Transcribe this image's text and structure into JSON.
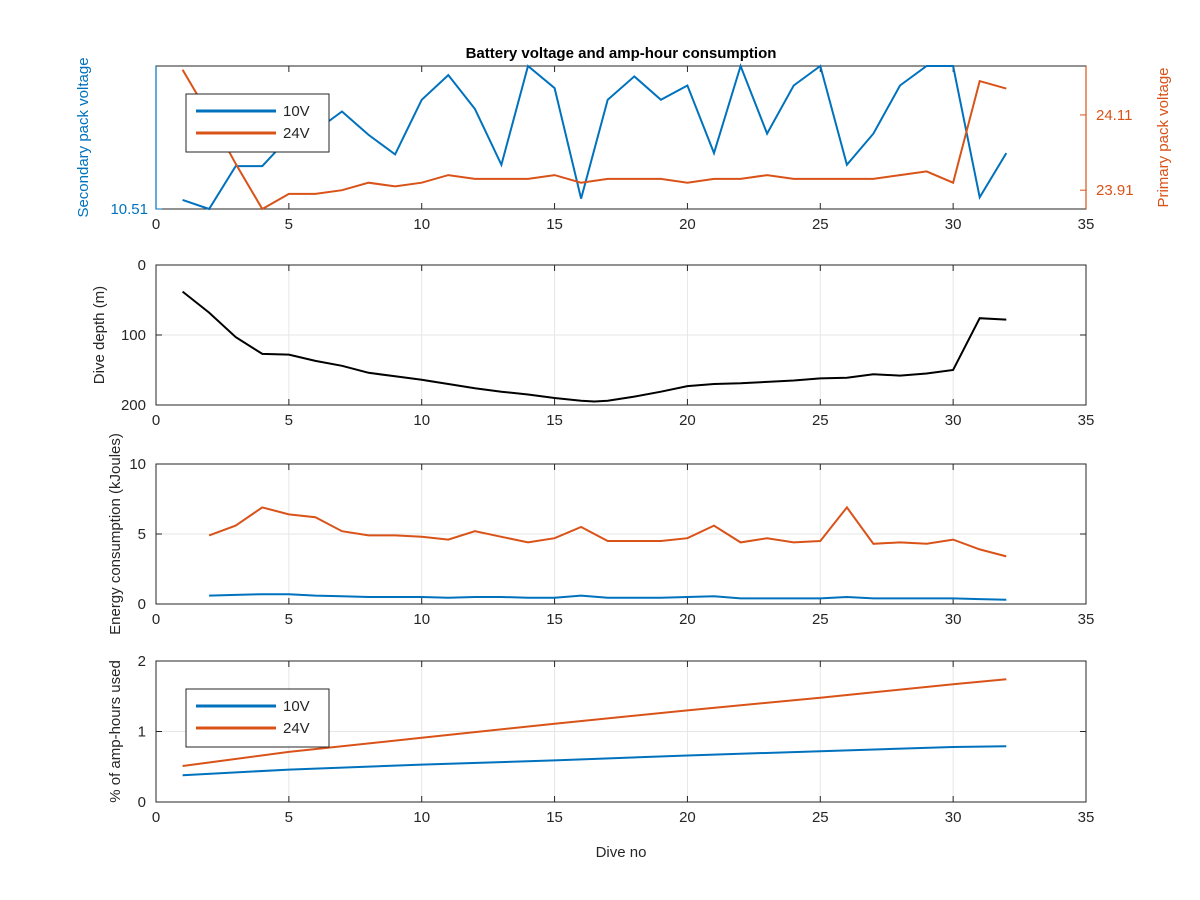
{
  "figure": {
    "title": "Battery voltage and amp-hour consumption",
    "colors": {
      "blue": "#0072BD",
      "orange": "#D95319",
      "black": "#000000",
      "grid": "#e6e6e6",
      "axis": "#262626"
    }
  },
  "chart_data": [
    {
      "id": "voltage",
      "type": "line",
      "title": "Battery voltage and amp-hour consumption",
      "xlabel": "",
      "xlim": [
        0,
        35
      ],
      "xticks": [
        0,
        5,
        10,
        15,
        20,
        25,
        30,
        35
      ],
      "grid": false,
      "legend": "top-left",
      "left_axis": {
        "label": "Secondary pack voltage",
        "ylim": [
          10.51,
          10.62
        ],
        "ticks": [
          10.51
        ],
        "tick_labels": [
          "10.51"
        ],
        "color": "#0072BD"
      },
      "right_axis": {
        "label": "Primary pack voltage",
        "ylim": [
          23.86,
          24.24
        ],
        "ticks": [
          23.91,
          24.11
        ],
        "tick_labels": [
          "23.91",
          "24.11"
        ],
        "color": "#D95319"
      },
      "series": [
        {
          "name": "10V",
          "axis": "left",
          "color": "#0072BD",
          "x": [
            1,
            2,
            3,
            4,
            5,
            6,
            7,
            8,
            9,
            10,
            11,
            12,
            13,
            14,
            15,
            16,
            17,
            18,
            19,
            20,
            21,
            22,
            23,
            24,
            25,
            26,
            27,
            28,
            29,
            30,
            31,
            32
          ],
          "y": [
            10.517,
            10.51,
            10.543,
            10.543,
            10.565,
            10.57,
            10.585,
            10.567,
            10.552,
            10.594,
            10.613,
            10.587,
            10.544,
            10.621,
            10.603,
            10.518,
            10.594,
            10.612,
            10.594,
            10.605,
            10.553,
            10.621,
            10.568,
            10.605,
            10.621,
            10.544,
            10.568,
            10.605,
            10.621,
            10.621,
            10.519,
            10.553
          ]
        },
        {
          "name": "24V",
          "axis": "right",
          "color": "#D95319",
          "x": [
            1,
            2,
            3,
            4,
            5,
            6,
            7,
            8,
            9,
            10,
            11,
            12,
            13,
            14,
            15,
            16,
            17,
            18,
            19,
            20,
            21,
            22,
            23,
            24,
            25,
            26,
            27,
            28,
            29,
            30,
            31,
            32
          ],
          "y": [
            24.23,
            24.11,
            23.98,
            23.86,
            23.9,
            23.9,
            23.91,
            23.93,
            23.92,
            23.93,
            23.95,
            23.94,
            23.94,
            23.94,
            23.95,
            23.93,
            23.94,
            23.94,
            23.94,
            23.93,
            23.94,
            23.94,
            23.95,
            23.94,
            23.94,
            23.94,
            23.94,
            23.95,
            23.96,
            23.93,
            24.2,
            24.18
          ]
        }
      ]
    },
    {
      "id": "depth",
      "type": "line",
      "ylabel": "Dive depth (m)",
      "xlim": [
        0,
        35
      ],
      "ylim": [
        0,
        200
      ],
      "y_reversed": true,
      "xticks": [
        0,
        5,
        10,
        15,
        20,
        25,
        30,
        35
      ],
      "yticks": [
        0,
        100,
        200
      ],
      "grid": true,
      "series": [
        {
          "name": "",
          "color": "#000000",
          "x": [
            1,
            2,
            3,
            4,
            5,
            6,
            7,
            8,
            9,
            10,
            11,
            12,
            13,
            14,
            15,
            16,
            16.5,
            17,
            18,
            19,
            20,
            21,
            22,
            23,
            24,
            25,
            26,
            27,
            28,
            29,
            30,
            31,
            32
          ],
          "y": [
            38,
            68,
            103,
            127,
            128,
            137,
            144,
            154,
            159,
            164,
            170,
            176,
            181,
            185,
            190,
            194,
            195,
            194,
            188,
            181,
            173,
            170,
            169,
            167,
            165,
            162,
            161,
            156,
            158,
            155,
            150,
            76,
            78
          ]
        }
      ]
    },
    {
      "id": "energy",
      "type": "line",
      "ylabel": "Energy consumption (kJoules)",
      "xlim": [
        0,
        35
      ],
      "ylim": [
        0,
        10
      ],
      "xticks": [
        0,
        5,
        10,
        15,
        20,
        25,
        30,
        35
      ],
      "yticks": [
        0,
        5,
        10
      ],
      "grid": true,
      "series": [
        {
          "name": "24V",
          "color": "#D95319",
          "x": [
            2,
            3,
            4,
            5,
            6,
            7,
            8,
            9,
            10,
            11,
            12,
            13,
            14,
            15,
            16,
            17,
            18,
            19,
            20,
            21,
            22,
            23,
            24,
            25,
            26,
            27,
            28,
            29,
            30,
            31,
            32
          ],
          "y": [
            4.9,
            5.6,
            6.9,
            6.4,
            6.2,
            5.2,
            4.9,
            4.9,
            4.8,
            4.6,
            5.2,
            4.8,
            4.4,
            4.7,
            5.5,
            4.5,
            4.5,
            4.5,
            4.7,
            5.6,
            4.4,
            4.7,
            4.4,
            4.5,
            6.9,
            4.3,
            4.4,
            4.3,
            4.6,
            3.9,
            3.4
          ]
        },
        {
          "name": "10V",
          "color": "#0072BD",
          "x": [
            2,
            3,
            4,
            5,
            6,
            7,
            8,
            9,
            10,
            11,
            12,
            13,
            14,
            15,
            16,
            17,
            18,
            19,
            20,
            21,
            22,
            23,
            24,
            25,
            26,
            27,
            28,
            29,
            30,
            31,
            32
          ],
          "y": [
            0.6,
            0.65,
            0.7,
            0.7,
            0.6,
            0.55,
            0.5,
            0.5,
            0.5,
            0.45,
            0.5,
            0.5,
            0.45,
            0.45,
            0.6,
            0.45,
            0.45,
            0.45,
            0.5,
            0.55,
            0.4,
            0.4,
            0.4,
            0.4,
            0.5,
            0.4,
            0.4,
            0.4,
            0.4,
            0.35,
            0.3
          ]
        }
      ]
    },
    {
      "id": "amphours",
      "type": "line",
      "ylabel": "% of amp-hours used",
      "xlabel": "Dive no",
      "xlim": [
        0,
        35
      ],
      "ylim": [
        0,
        2
      ],
      "xticks": [
        0,
        5,
        10,
        15,
        20,
        25,
        30,
        35
      ],
      "yticks": [
        0,
        1,
        2
      ],
      "grid": true,
      "legend": "top-left",
      "series": [
        {
          "name": "10V",
          "color": "#0072BD",
          "x": [
            1,
            5,
            10,
            15,
            20,
            25,
            30,
            32
          ],
          "y": [
            0.38,
            0.46,
            0.53,
            0.59,
            0.66,
            0.72,
            0.78,
            0.79
          ]
        },
        {
          "name": "24V",
          "color": "#D95319",
          "x": [
            1,
            5,
            10,
            15,
            20,
            25,
            30,
            32
          ],
          "y": [
            0.51,
            0.71,
            0.91,
            1.11,
            1.3,
            1.48,
            1.67,
            1.74
          ]
        }
      ]
    }
  ]
}
